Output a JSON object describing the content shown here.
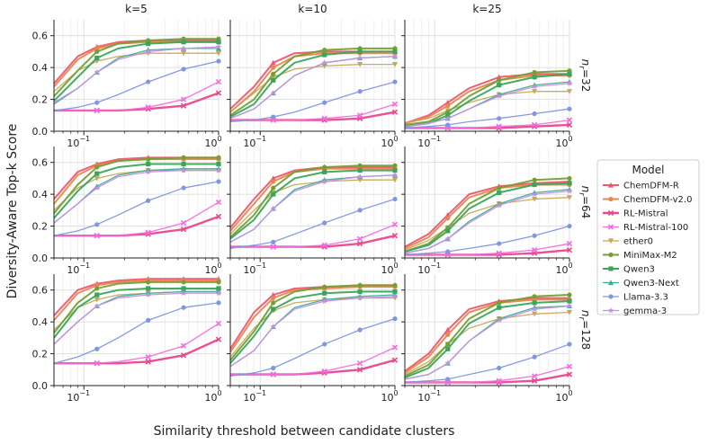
{
  "chart_data": {
    "type": "line",
    "ylabel": "Diversity-Aware Top-k Score",
    "xlabel": "Similarity threshold between candidate clusters",
    "x_scale": "log",
    "xlim": [
      0.06,
      1.0
    ],
    "ylim": [
      0,
      0.7
    ],
    "y_ticks": [
      "0.0",
      "0.2",
      "0.4",
      "0.6"
    ],
    "x_tick_labels": [
      "10",
      "−1",
      "10",
      "0"
    ],
    "columns": [
      "k=5",
      "k=10",
      "k=25"
    ],
    "rows": [
      {
        "letter": "n",
        "sub": "r",
        "value": "=32"
      },
      {
        "letter": "n",
        "sub": "r",
        "value": "=64"
      },
      {
        "letter": "n",
        "sub": "r",
        "value": "=128"
      }
    ],
    "legend": {
      "title": "Model",
      "position": "right"
    },
    "grid": true,
    "x_points": [
      0.06,
      0.09,
      0.125,
      0.18,
      0.3,
      0.55,
      1.0
    ],
    "series": [
      {
        "name": "ChemDFM-R",
        "color": "#f0566f",
        "marker": "triangle",
        "lw": 2,
        "panels": [
          [
            0.3,
            0.47,
            0.53,
            0.56,
            0.57,
            0.57,
            0.57
          ],
          [
            0.14,
            0.28,
            0.43,
            0.49,
            0.5,
            0.5,
            0.5
          ],
          [
            0.05,
            0.1,
            0.18,
            0.27,
            0.34,
            0.36,
            0.36
          ],
          [
            0.37,
            0.54,
            0.59,
            0.62,
            0.63,
            0.63,
            0.63
          ],
          [
            0.19,
            0.37,
            0.5,
            0.55,
            0.57,
            0.57,
            0.57
          ],
          [
            0.07,
            0.15,
            0.27,
            0.4,
            0.45,
            0.47,
            0.48
          ],
          [
            0.44,
            0.6,
            0.64,
            0.66,
            0.67,
            0.67,
            0.67
          ],
          [
            0.23,
            0.46,
            0.57,
            0.61,
            0.62,
            0.63,
            0.63
          ],
          [
            0.09,
            0.2,
            0.35,
            0.48,
            0.53,
            0.55,
            0.55
          ]
        ]
      },
      {
        "name": "ChemDFM-v2.0",
        "color": "#e8864f",
        "marker": "circle",
        "lw": 2,
        "panels": [
          [
            0.28,
            0.45,
            0.52,
            0.55,
            0.56,
            0.56,
            0.56
          ],
          [
            0.12,
            0.25,
            0.4,
            0.47,
            0.49,
            0.49,
            0.49
          ],
          [
            0.05,
            0.09,
            0.16,
            0.25,
            0.32,
            0.35,
            0.35
          ],
          [
            0.34,
            0.52,
            0.58,
            0.61,
            0.62,
            0.62,
            0.62
          ],
          [
            0.17,
            0.34,
            0.48,
            0.54,
            0.56,
            0.56,
            0.56
          ],
          [
            0.06,
            0.13,
            0.25,
            0.38,
            0.44,
            0.46,
            0.46
          ],
          [
            0.41,
            0.58,
            0.63,
            0.65,
            0.66,
            0.66,
            0.66
          ],
          [
            0.21,
            0.43,
            0.55,
            0.6,
            0.61,
            0.62,
            0.62
          ],
          [
            0.08,
            0.18,
            0.32,
            0.46,
            0.52,
            0.54,
            0.54
          ]
        ]
      },
      {
        "name": "RL-Mistral",
        "color": "#e8488f",
        "marker": "x",
        "lw": 2.4,
        "panels": [
          [
            0.13,
            0.13,
            0.13,
            0.13,
            0.14,
            0.16,
            0.24
          ],
          [
            0.07,
            0.07,
            0.07,
            0.07,
            0.07,
            0.08,
            0.12
          ],
          [
            0.02,
            0.02,
            0.02,
            0.02,
            0.02,
            0.03,
            0.04
          ],
          [
            0.14,
            0.14,
            0.14,
            0.14,
            0.15,
            0.18,
            0.26
          ],
          [
            0.07,
            0.07,
            0.07,
            0.07,
            0.07,
            0.09,
            0.14
          ],
          [
            0.02,
            0.02,
            0.02,
            0.02,
            0.02,
            0.03,
            0.05
          ],
          [
            0.14,
            0.14,
            0.14,
            0.14,
            0.15,
            0.19,
            0.29
          ],
          [
            0.07,
            0.07,
            0.07,
            0.07,
            0.08,
            0.1,
            0.16
          ],
          [
            0.02,
            0.02,
            0.02,
            0.02,
            0.02,
            0.03,
            0.07
          ]
        ]
      },
      {
        "name": "RL-Mistral-100",
        "color": "#f46ce0",
        "marker": "x",
        "lw": 1.3,
        "panels": [
          [
            0.13,
            0.13,
            0.13,
            0.13,
            0.15,
            0.2,
            0.31
          ],
          [
            0.07,
            0.07,
            0.07,
            0.07,
            0.08,
            0.1,
            0.17
          ],
          [
            0.02,
            0.02,
            0.02,
            0.02,
            0.03,
            0.04,
            0.07
          ],
          [
            0.14,
            0.14,
            0.14,
            0.14,
            0.16,
            0.22,
            0.35
          ],
          [
            0.07,
            0.07,
            0.07,
            0.07,
            0.08,
            0.12,
            0.21
          ],
          [
            0.02,
            0.02,
            0.02,
            0.02,
            0.03,
            0.05,
            0.09
          ],
          [
            0.14,
            0.14,
            0.14,
            0.15,
            0.18,
            0.25,
            0.39
          ],
          [
            0.07,
            0.07,
            0.07,
            0.07,
            0.09,
            0.14,
            0.24
          ],
          [
            0.02,
            0.02,
            0.02,
            0.02,
            0.03,
            0.06,
            0.12
          ]
        ]
      },
      {
        "name": "ether0",
        "color": "#c8a857",
        "marker": "triangle-down",
        "lw": 1.3,
        "panels": [
          [
            0.25,
            0.38,
            0.44,
            0.47,
            0.49,
            0.49,
            0.49
          ],
          [
            0.12,
            0.24,
            0.34,
            0.39,
            0.41,
            0.42,
            0.42
          ],
          [
            0.05,
            0.08,
            0.13,
            0.18,
            0.23,
            0.25,
            0.25
          ],
          [
            0.3,
            0.44,
            0.5,
            0.53,
            0.55,
            0.55,
            0.55
          ],
          [
            0.15,
            0.3,
            0.41,
            0.46,
            0.48,
            0.49,
            0.49
          ],
          [
            0.05,
            0.11,
            0.19,
            0.28,
            0.34,
            0.37,
            0.38
          ],
          [
            0.35,
            0.49,
            0.54,
            0.57,
            0.58,
            0.59,
            0.59
          ],
          [
            0.18,
            0.36,
            0.47,
            0.52,
            0.54,
            0.55,
            0.55
          ],
          [
            0.07,
            0.15,
            0.26,
            0.36,
            0.42,
            0.45,
            0.46
          ]
        ]
      },
      {
        "name": "MiniMax-M2",
        "color": "#74a032",
        "marker": "circle",
        "lw": 2,
        "panels": [
          [
            0.22,
            0.38,
            0.5,
            0.55,
            0.57,
            0.58,
            0.58
          ],
          [
            0.1,
            0.2,
            0.36,
            0.47,
            0.51,
            0.52,
            0.52
          ],
          [
            0.04,
            0.06,
            0.12,
            0.22,
            0.32,
            0.37,
            0.38
          ],
          [
            0.28,
            0.46,
            0.57,
            0.61,
            0.62,
            0.63,
            0.63
          ],
          [
            0.13,
            0.27,
            0.44,
            0.54,
            0.57,
            0.58,
            0.58
          ],
          [
            0.04,
            0.09,
            0.19,
            0.34,
            0.44,
            0.49,
            0.5
          ],
          [
            0.33,
            0.52,
            0.61,
            0.64,
            0.65,
            0.65,
            0.65
          ],
          [
            0.16,
            0.34,
            0.52,
            0.59,
            0.62,
            0.63,
            0.63
          ],
          [
            0.06,
            0.13,
            0.26,
            0.42,
            0.52,
            0.56,
            0.57
          ]
        ]
      },
      {
        "name": "Qwen3",
        "color": "#3aa65b",
        "marker": "square",
        "lw": 2,
        "panels": [
          [
            0.19,
            0.34,
            0.46,
            0.52,
            0.55,
            0.56,
            0.56
          ],
          [
            0.09,
            0.17,
            0.32,
            0.43,
            0.48,
            0.5,
            0.5
          ],
          [
            0.03,
            0.05,
            0.1,
            0.19,
            0.29,
            0.34,
            0.36
          ],
          [
            0.25,
            0.42,
            0.53,
            0.57,
            0.59,
            0.59,
            0.59
          ],
          [
            0.12,
            0.24,
            0.4,
            0.5,
            0.54,
            0.55,
            0.55
          ],
          [
            0.04,
            0.08,
            0.17,
            0.31,
            0.41,
            0.46,
            0.47
          ],
          [
            0.3,
            0.49,
            0.57,
            0.6,
            0.61,
            0.61,
            0.61
          ],
          [
            0.14,
            0.31,
            0.48,
            0.55,
            0.58,
            0.59,
            0.59
          ],
          [
            0.05,
            0.11,
            0.23,
            0.39,
            0.49,
            0.52,
            0.53
          ]
        ]
      },
      {
        "name": "Qwen3-Next",
        "color": "#3aaf93",
        "marker": "triangle",
        "lw": 1.3,
        "panels": [
          [
            0.17,
            0.27,
            0.37,
            0.46,
            0.51,
            0.52,
            0.52
          ],
          [
            0.08,
            0.14,
            0.24,
            0.35,
            0.43,
            0.46,
            0.47
          ],
          [
            0.03,
            0.05,
            0.08,
            0.14,
            0.23,
            0.29,
            0.31
          ],
          [
            0.22,
            0.34,
            0.45,
            0.52,
            0.55,
            0.56,
            0.56
          ],
          [
            0.1,
            0.18,
            0.31,
            0.43,
            0.49,
            0.51,
            0.52
          ],
          [
            0.03,
            0.06,
            0.12,
            0.23,
            0.34,
            0.41,
            0.43
          ],
          [
            0.26,
            0.4,
            0.5,
            0.56,
            0.58,
            0.59,
            0.59
          ],
          [
            0.12,
            0.22,
            0.37,
            0.49,
            0.54,
            0.56,
            0.57
          ],
          [
            0.04,
            0.07,
            0.14,
            0.28,
            0.42,
            0.49,
            0.5
          ]
        ]
      },
      {
        "name": "Llama-3.3",
        "color": "#7f96e0",
        "marker": "circle",
        "lw": 1.3,
        "panels": [
          [
            0.13,
            0.15,
            0.18,
            0.23,
            0.31,
            0.39,
            0.44
          ],
          [
            0.06,
            0.07,
            0.09,
            0.12,
            0.18,
            0.25,
            0.31
          ],
          [
            0.02,
            0.03,
            0.04,
            0.06,
            0.08,
            0.11,
            0.14
          ],
          [
            0.14,
            0.17,
            0.21,
            0.27,
            0.36,
            0.44,
            0.48
          ],
          [
            0.06,
            0.08,
            0.1,
            0.15,
            0.22,
            0.3,
            0.37
          ],
          [
            0.02,
            0.03,
            0.04,
            0.06,
            0.09,
            0.14,
            0.2
          ],
          [
            0.14,
            0.18,
            0.23,
            0.3,
            0.41,
            0.49,
            0.52
          ],
          [
            0.06,
            0.08,
            0.11,
            0.17,
            0.26,
            0.35,
            0.42
          ],
          [
            0.02,
            0.03,
            0.04,
            0.07,
            0.11,
            0.18,
            0.26
          ]
        ]
      },
      {
        "name": "gemma-3",
        "color": "#c78de6",
        "marker": "star",
        "lw": 1.3,
        "panels": [
          [
            0.18,
            0.27,
            0.37,
            0.45,
            0.5,
            0.52,
            0.53
          ],
          [
            0.08,
            0.14,
            0.24,
            0.35,
            0.43,
            0.46,
            0.47
          ],
          [
            0.03,
            0.05,
            0.08,
            0.14,
            0.22,
            0.28,
            0.3
          ],
          [
            0.22,
            0.34,
            0.44,
            0.51,
            0.54,
            0.55,
            0.55
          ],
          [
            0.1,
            0.18,
            0.31,
            0.42,
            0.48,
            0.51,
            0.52
          ],
          [
            0.03,
            0.06,
            0.12,
            0.22,
            0.33,
            0.4,
            0.42
          ],
          [
            0.26,
            0.4,
            0.5,
            0.55,
            0.57,
            0.58,
            0.58
          ],
          [
            0.12,
            0.22,
            0.37,
            0.48,
            0.53,
            0.55,
            0.56
          ],
          [
            0.04,
            0.07,
            0.14,
            0.28,
            0.41,
            0.48,
            0.5
          ]
        ]
      }
    ]
  }
}
